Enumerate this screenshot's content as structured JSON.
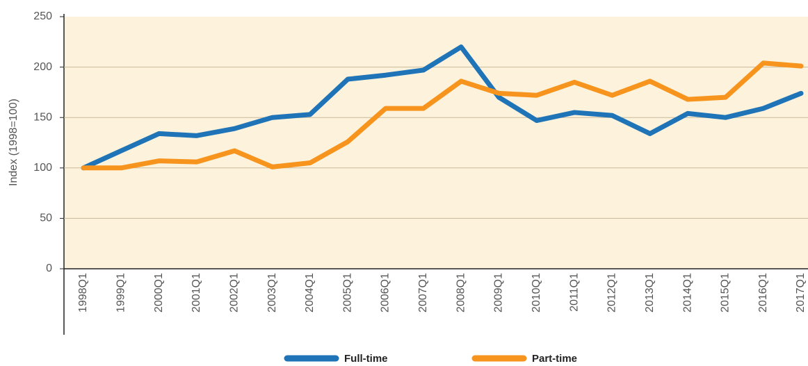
{
  "chart_data": {
    "type": "line",
    "y_label": "Index (1998=100)",
    "categories": [
      "1998Q1",
      "1999Q1",
      "2000Q1",
      "2001Q1",
      "2002Q1",
      "2003Q1",
      "2004Q1",
      "2005Q1",
      "2006Q1",
      "2007Q1",
      "2008Q1",
      "2009Q1",
      "2010Q1",
      "2011Q1",
      "2012Q1",
      "2013Q1",
      "2014Q1",
      "2015Q1",
      "2016Q1",
      "2017Q1"
    ],
    "series": [
      {
        "name": "Full-time",
        "color": "#1f73b7",
        "values": [
          100,
          117,
          134,
          132,
          139,
          150,
          153,
          188,
          192,
          197,
          220,
          170,
          147,
          155,
          152,
          134,
          154,
          150,
          159,
          174
        ]
      },
      {
        "name": "Part-time",
        "color": "#f7941d",
        "values": [
          100,
          100,
          107,
          106,
          117,
          101,
          105,
          126,
          159,
          159,
          186,
          174,
          172,
          185,
          172,
          186,
          168,
          170,
          204,
          201
        ]
      }
    ],
    "ylim": [
      0,
      250
    ],
    "yticks": [
      0,
      50,
      100,
      150,
      200,
      250
    ],
    "grid": true
  }
}
